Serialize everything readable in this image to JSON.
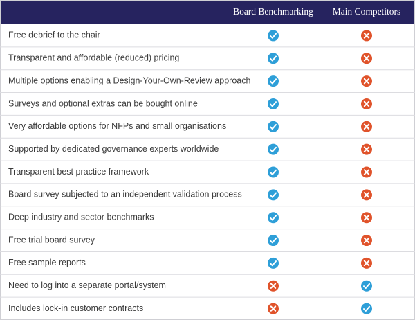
{
  "table": {
    "columns": [
      "Board Benchmarking",
      "Main Competitors"
    ],
    "rows": [
      {
        "feature": "Free debrief to the chair",
        "values": [
          true,
          false
        ]
      },
      {
        "feature": "Transparent and affordable (reduced) pricing",
        "values": [
          true,
          false
        ]
      },
      {
        "feature": "Multiple options enabling a Design-Your-Own-Review approach",
        "values": [
          true,
          false
        ]
      },
      {
        "feature": "Surveys and optional extras can be bought online",
        "values": [
          true,
          false
        ]
      },
      {
        "feature": "Very affordable options for NFPs and small organisations",
        "values": [
          true,
          false
        ]
      },
      {
        "feature": "Supported by dedicated governance experts worldwide",
        "values": [
          true,
          false
        ]
      },
      {
        "feature": "Transparent best practice framework",
        "values": [
          true,
          false
        ]
      },
      {
        "feature": "Board survey subjected to an independent validation process",
        "values": [
          true,
          false
        ]
      },
      {
        "feature": "Deep industry and sector benchmarks",
        "values": [
          true,
          false
        ]
      },
      {
        "feature": "Free trial board survey",
        "values": [
          true,
          false
        ]
      },
      {
        "feature": "Free sample reports",
        "values": [
          true,
          false
        ]
      },
      {
        "feature": "Need to log into a separate portal/system",
        "values": [
          false,
          true
        ]
      },
      {
        "feature": "Includes lock-in customer contracts",
        "values": [
          false,
          true
        ]
      }
    ]
  }
}
